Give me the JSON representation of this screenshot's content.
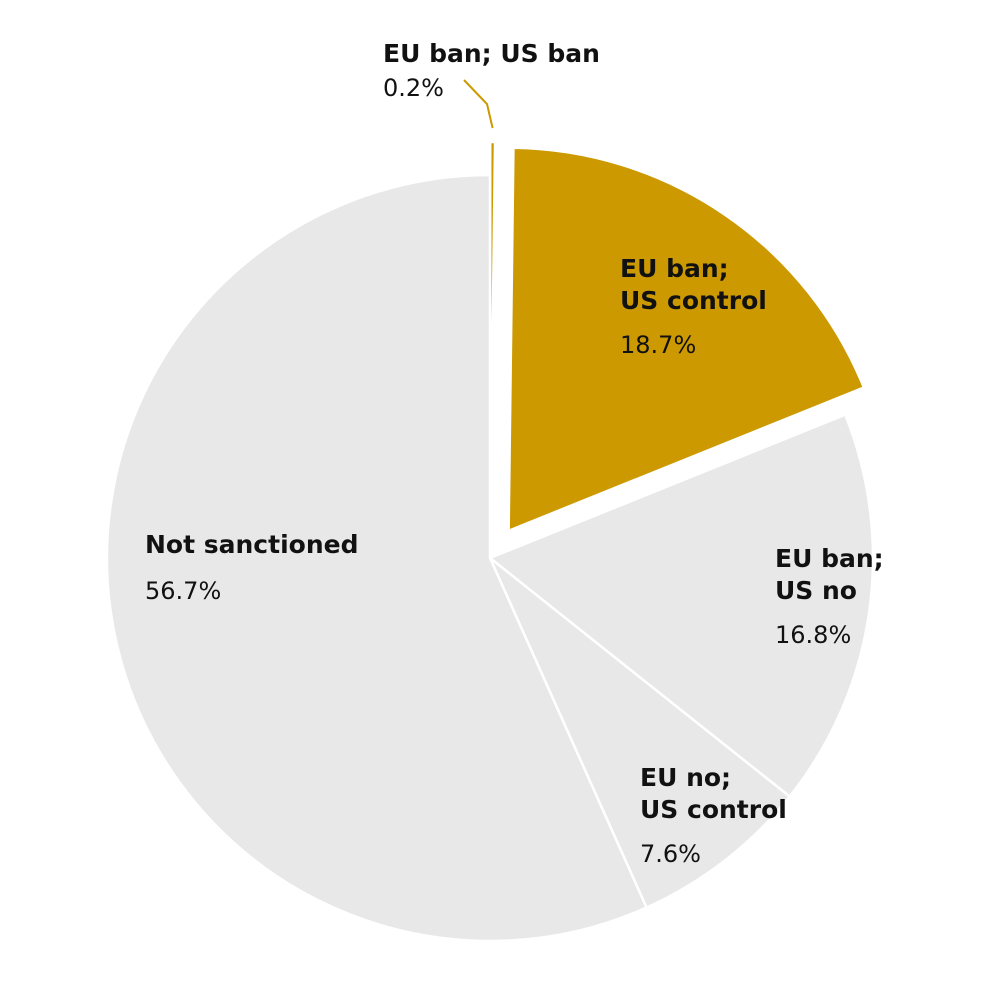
{
  "chart_data": {
    "type": "pie",
    "title": "",
    "slices": [
      {
        "label_lines": [
          "EU ban; US ban"
        ],
        "value": 0.2,
        "value_label": "0.2%",
        "color": "#CC9900"
      },
      {
        "label_lines": [
          "EU ban;",
          "US control"
        ],
        "value": 18.7,
        "value_label": "18.7%",
        "color": "#CC9900"
      },
      {
        "label_lines": [
          "EU ban;",
          "US no"
        ],
        "value": 16.8,
        "value_label": "16.8%",
        "color": "#E8E8E8"
      },
      {
        "label_lines": [
          "EU no;",
          "US control"
        ],
        "value": 7.6,
        "value_label": "7.6%",
        "color": "#E8E8E8"
      },
      {
        "label_lines": [
          "Not sanctioned"
        ],
        "value": 56.7,
        "value_label": "56.7%",
        "color": "#E8E8E8"
      }
    ]
  }
}
